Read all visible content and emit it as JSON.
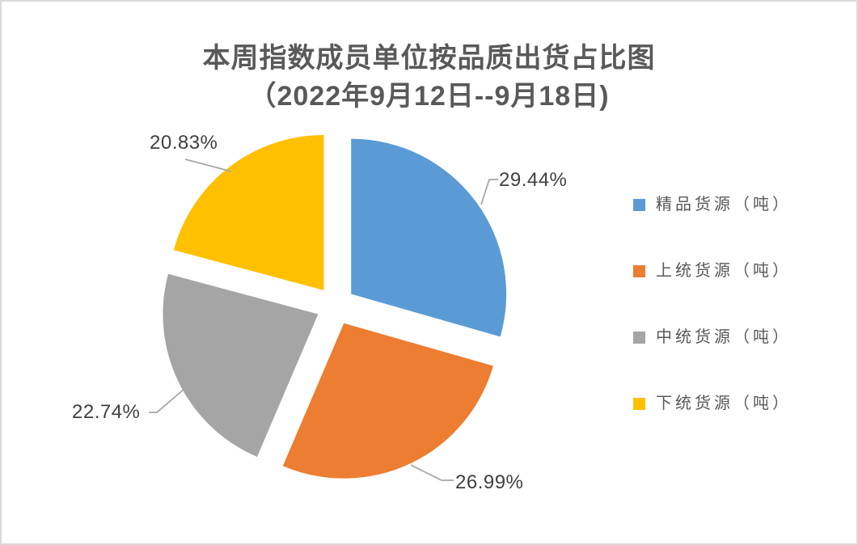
{
  "chart_data": {
    "type": "pie",
    "title": "本周指数成员单位按品质出货占比图",
    "subtitle": "（2022年9月12日--9月18日)",
    "categories": [
      "精品货源（吨）",
      "上统货源（吨）",
      "中统货源（吨）",
      "下统货源（吨）"
    ],
    "values": [
      29.44,
      26.99,
      22.74,
      20.83
    ],
    "data_labels": [
      "29.44%",
      "26.99%",
      "22.74%",
      "20.83%"
    ],
    "colors": [
      "#5B9BD5",
      "#ED7D31",
      "#A5A5A5",
      "#FFC000"
    ],
    "unit": "percent",
    "legend_position": "right",
    "exploded": true,
    "start_angle_deg": 0,
    "direction": "clockwise",
    "title_color": "#595959",
    "label_color": "#404040",
    "legend_text_color": "#595959",
    "leader_line_color": "#A6A6A6",
    "frame_border_color": "#D9D9D9"
  }
}
